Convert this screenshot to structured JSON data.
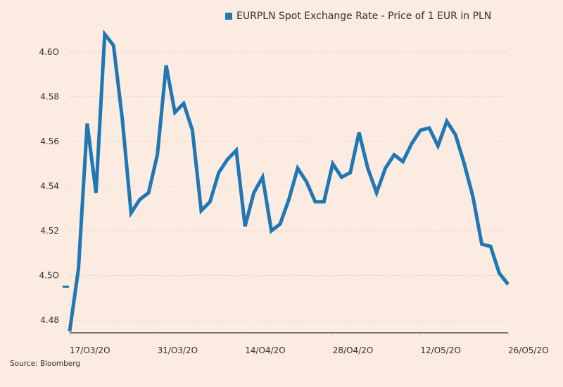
{
  "chart_data": {
    "type": "line",
    "title": "",
    "xlabel": "",
    "ylabel": "",
    "legend": {
      "position": "top-right",
      "entries": [
        "EURPLN Spot Exchange Rate - Price of 1 EUR in PLN"
      ]
    },
    "source": "Source: Bloomberg",
    "ylim": [
      4.475,
      4.61
    ],
    "yticks": [
      4.48,
      4.5,
      4.52,
      4.54,
      4.56,
      4.58,
      4.6
    ],
    "ytick_labels": [
      "4.48",
      "4.5O",
      "4.52",
      "4.54",
      "4.56",
      "4.58",
      "4.6O"
    ],
    "xtick_labels": [
      "17/O3/2O",
      "31/O3/2O",
      "14/O4/2O",
      "28/O4/2O",
      "12/O5/2O",
      "26/O5/2O"
    ],
    "grid": true,
    "series_color": "#1f77b4",
    "reference_marker": 4.495,
    "series": [
      {
        "name": "EURPLN Spot Exchange Rate - Price of 1 EUR in PLN",
        "values": [
          4.475,
          4.503,
          4.568,
          4.537,
          4.608,
          4.603,
          4.57,
          4.528,
          4.534,
          4.537,
          4.554,
          4.594,
          4.573,
          4.577,
          4.565,
          4.529,
          4.533,
          4.546,
          4.552,
          4.556,
          4.522,
          4.537,
          4.544,
          4.52,
          4.523,
          4.534,
          4.548,
          4.542,
          4.533,
          4.533,
          4.55,
          4.544,
          4.546,
          4.564,
          4.548,
          4.537,
          4.548,
          4.554,
          4.551,
          4.559,
          4.565,
          4.566,
          4.558,
          4.569,
          4.563,
          4.55,
          4.535,
          4.514,
          4.513,
          4.501,
          4.496
        ]
      }
    ]
  }
}
